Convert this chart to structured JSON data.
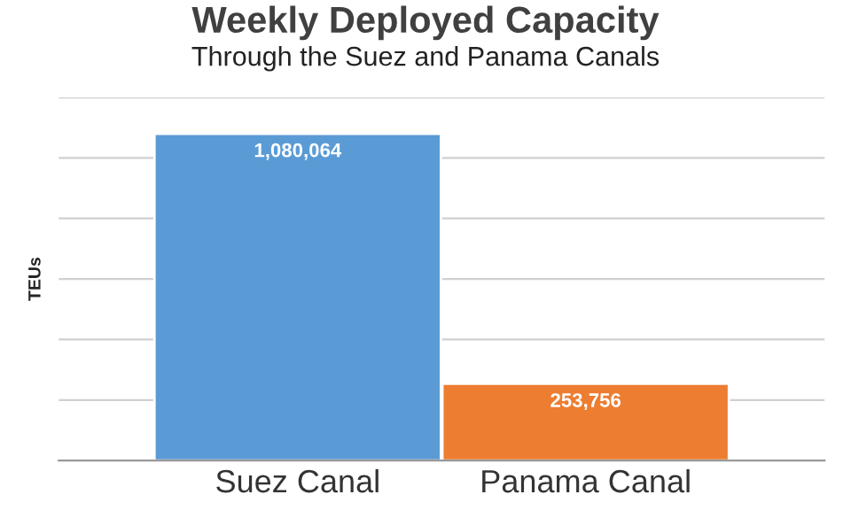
{
  "chart_data": {
    "type": "bar",
    "title": "Weekly Deployed Capacity",
    "subtitle": "Through the Suez and Panama Canals",
    "ylabel": "TEUs",
    "categories": [
      "Suez Canal",
      "Panama Canal"
    ],
    "values": [
      1080064,
      253756
    ],
    "colors": [
      "#5b9bd5",
      "#ed7d31"
    ],
    "value_labels": [
      "1,080,064",
      "253,756"
    ],
    "ylim": [
      0,
      1200000
    ],
    "yticks": [
      {
        "value": 0,
        "label": null
      },
      {
        "value": 200000,
        "label": null
      },
      {
        "value": 400000,
        "label": null
      },
      {
        "value": 600000,
        "label": null
      },
      {
        "value": 800000,
        "label": null
      },
      {
        "value": 1000000,
        "label": null
      },
      {
        "value": 1200000,
        "label": null
      }
    ],
    "tick_labels": "x",
    "grid": "y",
    "legend": false
  }
}
